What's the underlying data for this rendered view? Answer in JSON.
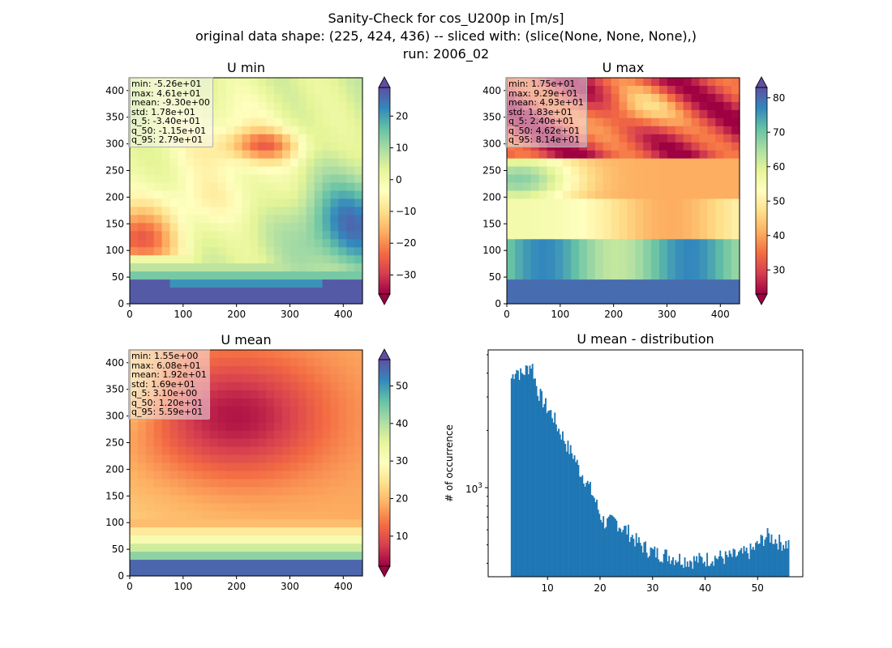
{
  "figure": {
    "title_lines": [
      "Sanity-Check for cos_U200p in [m/s]",
      "original data shape: (225, 424, 436) -- sliced with: (slice(None, None, None),)",
      "run: 2006_02"
    ]
  },
  "colormap": "Spectral",
  "chart_data": [
    {
      "type": "heatmap",
      "title": "U min",
      "xlim": [
        0,
        436
      ],
      "ylim": [
        0,
        424
      ],
      "xticks": [
        "0",
        "100",
        "200",
        "300",
        "400"
      ],
      "yticks": [
        "0",
        "50",
        "100",
        "150",
        "200",
        "250",
        "300",
        "350",
        "400"
      ],
      "colorbar": {
        "range": [
          -36,
          29
        ],
        "ticks": [
          "−30",
          "−20",
          "−10",
          "0",
          "10",
          "20"
        ],
        "extend": "both"
      },
      "stats": [
        "min: -5.26e+01",
        "max: 4.61e+01",
        "mean: -9.30e+00",
        "std: 1.78e+01",
        "q_5: -3.40e+01",
        "q_50: -1.15e+01",
        "q_95: 2.79e+01"
      ]
    },
    {
      "type": "heatmap",
      "title": "U max",
      "xlim": [
        0,
        436
      ],
      "ylim": [
        0,
        424
      ],
      "xticks": [
        "0",
        "100",
        "200",
        "300",
        "400"
      ],
      "yticks": [
        "0",
        "50",
        "100",
        "150",
        "200",
        "250",
        "300",
        "350",
        "400"
      ],
      "colorbar": {
        "range": [
          23,
          83
        ],
        "ticks": [
          "30",
          "40",
          "50",
          "60",
          "70",
          "80"
        ],
        "extend": "both"
      },
      "stats": [
        "min: 1.75e+01",
        "max: 9.29e+01",
        "mean: 4.93e+01",
        "std: 1.83e+01",
        "q_5: 2.40e+01",
        "q_50: 4.62e+01",
        "q_95: 8.14e+01"
      ]
    },
    {
      "type": "heatmap",
      "title": "U mean",
      "xlim": [
        0,
        436
      ],
      "ylim": [
        0,
        424
      ],
      "xticks": [
        "0",
        "100",
        "200",
        "300",
        "400"
      ],
      "yticks": [
        "0",
        "50",
        "100",
        "150",
        "200",
        "250",
        "300",
        "350",
        "400"
      ],
      "colorbar": {
        "range": [
          2,
          57
        ],
        "ticks": [
          "10",
          "20",
          "30",
          "40",
          "50"
        ],
        "extend": "both"
      },
      "stats": [
        "min: 1.55e+00",
        "max: 6.08e+01",
        "mean: 1.92e+01",
        "std: 1.69e+01",
        "q_5: 3.10e+00",
        "q_50: 1.20e+01",
        "q_95: 5.59e+01"
      ]
    },
    {
      "type": "bar",
      "title": "U mean - distribution",
      "xlabel": "",
      "ylabel": "# of occurrence",
      "ytick_label": "10",
      "ytick_exponent": "3",
      "xlim": [
        -1.3,
        58.6
      ],
      "xticks": [
        10,
        20,
        30,
        40,
        50
      ],
      "yscale": "log",
      "ylim": [
        340,
        5300
      ],
      "bar_color": "#1f77b4",
      "bin_width": 0.25,
      "anchors": [
        [
          3,
          3700
        ],
        [
          4,
          4250
        ],
        [
          5,
          3900
        ],
        [
          6,
          4200
        ],
        [
          7,
          4500
        ],
        [
          8,
          3300
        ],
        [
          9,
          2900
        ],
        [
          10,
          2600
        ],
        [
          11,
          2400
        ],
        [
          12,
          2050
        ],
        [
          13,
          1850
        ],
        [
          14,
          1600
        ],
        [
          15,
          1480
        ],
        [
          16,
          1250
        ],
        [
          17,
          1130
        ],
        [
          18,
          1000
        ],
        [
          19,
          870
        ],
        [
          20,
          720
        ],
        [
          21,
          650
        ],
        [
          22,
          660
        ],
        [
          23,
          670
        ],
        [
          24,
          620
        ],
        [
          25,
          600
        ],
        [
          26,
          560
        ],
        [
          27,
          520
        ],
        [
          28,
          495
        ],
        [
          29,
          475
        ],
        [
          30,
          460
        ],
        [
          31,
          450
        ],
        [
          32,
          445
        ],
        [
          33,
          440
        ],
        [
          34,
          430
        ],
        [
          35,
          425
        ],
        [
          36,
          420
        ],
        [
          37,
          415
        ],
        [
          38,
          415
        ],
        [
          39,
          418
        ],
        [
          40,
          420
        ],
        [
          41,
          425
        ],
        [
          42,
          430
        ],
        [
          43,
          432
        ],
        [
          44,
          428
        ],
        [
          45,
          435
        ],
        [
          46,
          440
        ],
        [
          47,
          445
        ],
        [
          48,
          455
        ],
        [
          49,
          470
        ],
        [
          50,
          500
        ],
        [
          51,
          540
        ],
        [
          52,
          560
        ],
        [
          53,
          540
        ],
        [
          54,
          520
        ],
        [
          55,
          510
        ],
        [
          55.8,
          505
        ]
      ]
    }
  ]
}
